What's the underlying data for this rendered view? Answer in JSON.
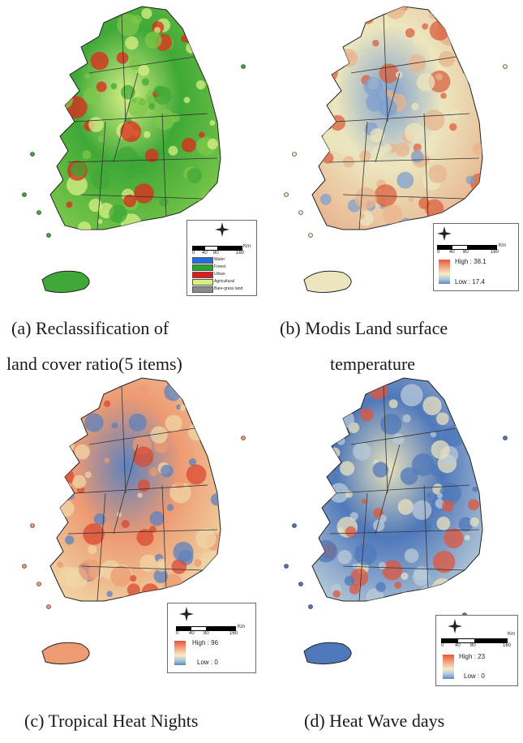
{
  "panels": [
    {
      "id": "a",
      "caption_line1": "(a)   Reclassification   of",
      "caption_line2": "land cover ratio(5 items)",
      "legend": {
        "unit": "Km",
        "ticks": [
          "0",
          "40",
          "80",
          "160"
        ],
        "classes": [
          {
            "label": "Water",
            "color": "#1f6fe0"
          },
          {
            "label": "Forest",
            "color": "#2aa32a"
          },
          {
            "label": "Urban",
            "color": "#e01b1b"
          },
          {
            "label": "Agricultural",
            "color": "#d9f27f"
          },
          {
            "label": "Bare-grass land",
            "color": "#8a8a8a"
          }
        ]
      },
      "colors": {
        "base": "#3fa837",
        "mid": "#7cc84a",
        "hot": "#e0271c",
        "cool": "#d8ef86"
      }
    },
    {
      "id": "b",
      "caption_line1": "(b) Modis Land surface",
      "caption_line2": "temperature",
      "legend": {
        "unit": "Km",
        "ticks": [
          "0",
          "40",
          "80",
          "160"
        ],
        "high": "High : 38.1",
        "low": "Low : 17.4"
      },
      "colors": {
        "base": "#ece6bf",
        "mid": "#e8b48e",
        "hot": "#d9603f",
        "cool": "#7fa0cd"
      }
    },
    {
      "id": "c",
      "caption_line1": "(c) Tropical Heat Nights",
      "legend": {
        "unit": "Km",
        "ticks": [
          "0",
          "40",
          "80",
          "160"
        ],
        "high": "High : 96",
        "low": "Low : 0"
      },
      "colors": {
        "base": "#ee9a72",
        "mid": "#f0d6a6",
        "hot": "#d94a32",
        "cool": "#5d82be"
      }
    },
    {
      "id": "d",
      "caption_line1": "(d) Heat Wave days",
      "legend": {
        "unit": "Km",
        "ticks": [
          "0",
          "40",
          "80",
          "160"
        ],
        "high": "High : 23",
        "low": "Low : 0"
      },
      "colors": {
        "base": "#4f78ba",
        "mid": "#b9cbd9",
        "hot": "#e0553a",
        "cool": "#e9e2bd"
      }
    }
  ]
}
